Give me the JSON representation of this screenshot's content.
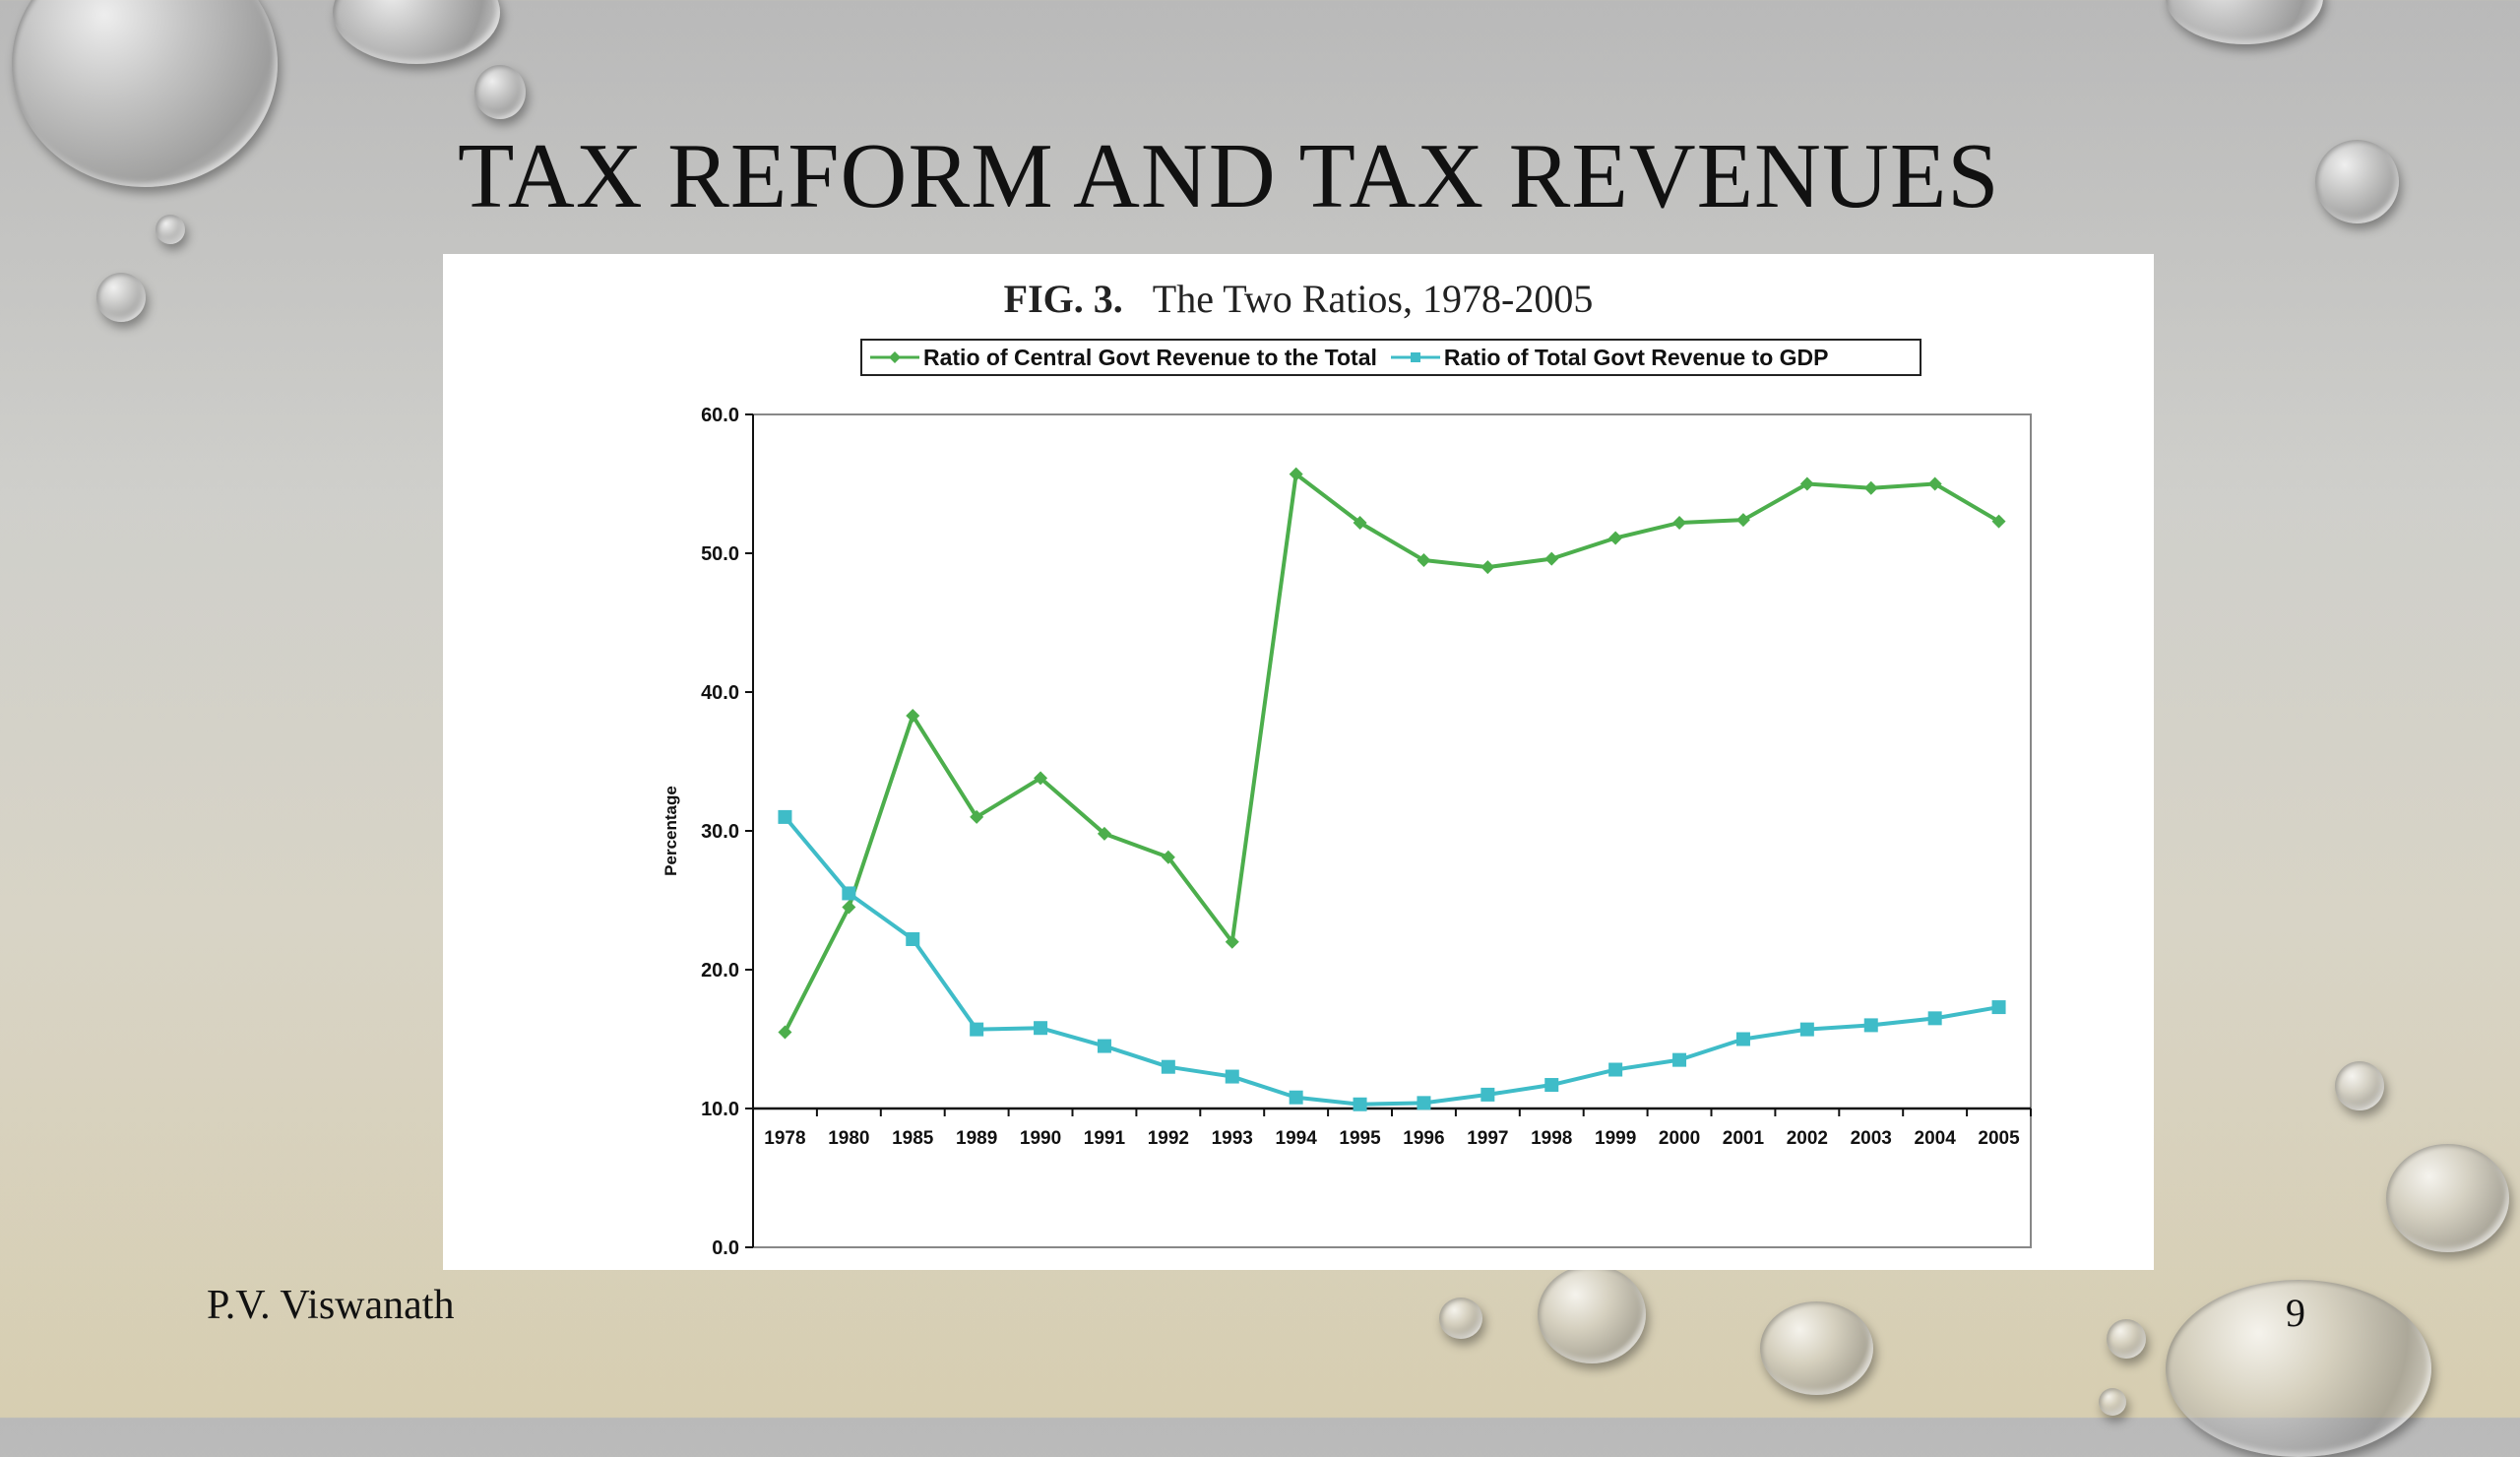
{
  "slide": {
    "title": "TAX REFORM AND TAX REVENUES",
    "footer": "P.V. Viswanath",
    "page_number": "9"
  },
  "chart_data": {
    "type": "line",
    "title_prefix": "FIG. 3.",
    "title": "The Two Ratios, 1978-2005",
    "xlabel": "",
    "ylabel": "Percentage",
    "ylim": [
      0,
      60
    ],
    "y_ticks": [
      "0.0",
      "10.0",
      "20.0",
      "30.0",
      "40.0",
      "50.0",
      "60.0"
    ],
    "x_axis_at": 10,
    "grid": false,
    "legend_position": "top",
    "categories": [
      "1978",
      "1980",
      "1985",
      "1989",
      "1990",
      "1991",
      "1992",
      "1993",
      "1994",
      "1995",
      "1996",
      "1997",
      "1998",
      "1999",
      "2000",
      "2001",
      "2002",
      "2003",
      "2004",
      "2005"
    ],
    "series": [
      {
        "name": "Ratio of Central Govt Revenue to the Total",
        "color": "#4cae4c",
        "marker": "diamond",
        "values": [
          15.5,
          24.5,
          38.3,
          31.0,
          33.8,
          29.8,
          28.1,
          22.0,
          55.7,
          52.2,
          49.5,
          49.0,
          49.6,
          51.1,
          52.2,
          52.4,
          55.0,
          54.7,
          55.0,
          52.3
        ]
      },
      {
        "name": "Ratio of Total Govt Revenue to GDP",
        "color": "#3fbcc8",
        "marker": "square",
        "values": [
          31.0,
          25.5,
          22.2,
          15.7,
          15.8,
          14.5,
          13.0,
          12.3,
          10.8,
          10.3,
          10.4,
          11.0,
          11.7,
          12.8,
          13.5,
          15.0,
          15.7,
          16.0,
          16.5,
          17.3
        ]
      }
    ]
  }
}
